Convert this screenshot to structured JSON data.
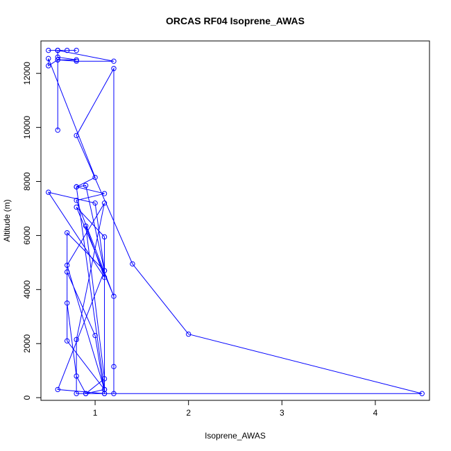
{
  "chart_data": {
    "type": "line",
    "title": "ORCAS RF04 Isoprene_AWAS",
    "xlabel": "Isoprene_AWAS",
    "ylabel": "Altitude (m)",
    "xlim": [
      0.42,
      4.58
    ],
    "ylim": [
      -100,
      13200
    ],
    "x_ticks": [
      1,
      2,
      3,
      4
    ],
    "y_ticks": [
      0,
      2000,
      4000,
      6000,
      8000,
      10000,
      12000
    ],
    "grid": false,
    "legend": "none",
    "markers": "open-circle",
    "series": [
      {
        "color": "#0000ff",
        "points": [
          [
            0.6,
            9900
          ],
          [
            0.6,
            12500
          ],
          [
            0.8,
            12500
          ],
          [
            0.6,
            12600
          ],
          [
            0.6,
            12850
          ],
          [
            0.7,
            12850
          ],
          [
            0.5,
            12850
          ],
          [
            0.8,
            12850
          ],
          [
            0.6,
            12850
          ],
          [
            0.6,
            12850
          ],
          [
            1.2,
            12450
          ],
          [
            0.8,
            12450
          ],
          [
            0.6,
            12500
          ],
          [
            0.5,
            12280
          ],
          [
            0.5,
            12550
          ],
          [
            1.0,
            8150
          ],
          [
            0.8,
            7800
          ],
          [
            0.8,
            7800
          ],
          [
            1.1,
            7550
          ],
          [
            0.8,
            7300
          ],
          [
            1.2,
            3750
          ],
          [
            0.8,
            7050
          ],
          [
            1.1,
            5950
          ],
          [
            1.1,
            150
          ],
          [
            1.2,
            150
          ],
          [
            1.2,
            1150
          ],
          [
            1.2,
            12180
          ],
          [
            0.8,
            9700
          ],
          [
            1.4,
            4950
          ],
          [
            2.0,
            2350
          ],
          [
            4.5,
            150
          ],
          [
            0.8,
            150
          ],
          [
            0.8,
            2150
          ],
          [
            1.1,
            7200
          ],
          [
            0.7,
            4900
          ],
          [
            1.1,
            300
          ],
          [
            0.7,
            2100
          ],
          [
            0.7,
            4650
          ],
          [
            1.0,
            2300
          ],
          [
            1.1,
            150
          ],
          [
            0.6,
            300
          ],
          [
            1.1,
            4700
          ],
          [
            0.7,
            6100
          ],
          [
            0.7,
            3500
          ],
          [
            0.8,
            800
          ],
          [
            0.9,
            150
          ],
          [
            1.1,
            700
          ],
          [
            0.9,
            6350
          ],
          [
            1.1,
            4450
          ],
          [
            0.5,
            7600
          ],
          [
            1.0,
            7200
          ],
          [
            1.1,
            4700
          ],
          [
            0.9,
            7850
          ],
          [
            0.8,
            7800
          ],
          [
            1.1,
            300
          ],
          [
            0.9,
            150
          ]
        ]
      }
    ]
  }
}
